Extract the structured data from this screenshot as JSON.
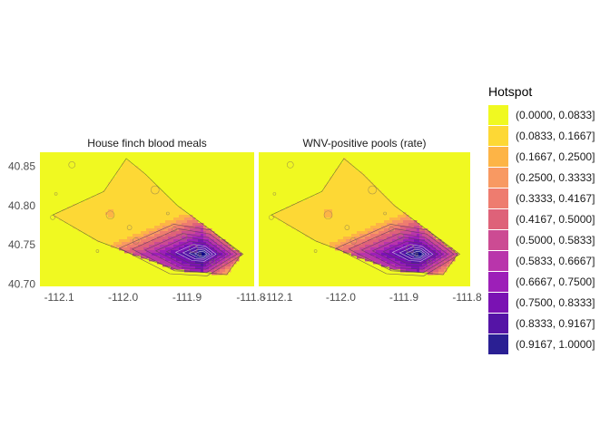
{
  "chart_data": {
    "type": "heatmap",
    "panels": [
      {
        "title": "House finch blood meals"
      },
      {
        "title": "WNV-positive pools (rate)"
      }
    ],
    "x_ticks": [
      -112.1,
      -112.0,
      -111.9,
      -111.8
    ],
    "x_tick_labels": [
      "-112.1",
      "-112.0",
      "-111.9",
      "-111.8"
    ],
    "y_ticks": [
      40.7,
      40.75,
      40.8,
      40.85
    ],
    "y_tick_labels": [
      "40.70",
      "40.75",
      "40.80",
      "40.85"
    ],
    "xlim": [
      -112.13,
      -111.795
    ],
    "ylim": [
      40.697,
      40.868
    ],
    "hotspot_peak": {
      "lon": -111.875,
      "lat": 40.738,
      "value": 1.0
    },
    "contour_levels": [
      0.0833,
      0.1667,
      0.25,
      0.3333,
      0.4167,
      0.5,
      0.5833,
      0.6667,
      0.75,
      0.8333,
      0.9167
    ],
    "legend": {
      "title": "Hotspot",
      "bins": [
        {
          "label": "(0.0000, 0.0833]",
          "color": "#f0f921"
        },
        {
          "label": "(0.0833, 0.1667]",
          "color": "#fdd835"
        },
        {
          "label": "(0.1667, 0.2500]",
          "color": "#fdb446"
        },
        {
          "label": "(0.2500, 0.3333]",
          "color": "#f89962"
        },
        {
          "label": "(0.3333, 0.4167]",
          "color": "#ee7c6f"
        },
        {
          "label": "(0.4167, 0.5000]",
          "color": "#de6279"
        },
        {
          "label": "(0.5000, 0.5833]",
          "color": "#cc4b93"
        },
        {
          "label": "(0.5833, 0.6667]",
          "color": "#b935ab"
        },
        {
          "label": "(0.6667, 0.7500]",
          "color": "#9d1fb8"
        },
        {
          "label": "(0.7500, 0.8333]",
          "color": "#7a12b3"
        },
        {
          "label": "(0.8333, 0.9167]",
          "color": "#5514a6"
        },
        {
          "label": "(0.9167, 1.0000]",
          "color": "#2a1f93"
        }
      ]
    },
    "sites": [
      {
        "lon": -112.105,
        "lat": 40.815
      },
      {
        "lon": -112.11,
        "lat": 40.785
      },
      {
        "lon": -112.08,
        "lat": 40.852
      },
      {
        "lon": -112.02,
        "lat": 40.788
      },
      {
        "lon": -112.04,
        "lat": 40.742
      },
      {
        "lon": -111.99,
        "lat": 40.772
      },
      {
        "lon": -111.98,
        "lat": 40.755
      },
      {
        "lon": -111.95,
        "lat": 40.82
      },
      {
        "lon": -111.93,
        "lat": 40.79
      },
      {
        "lon": -111.92,
        "lat": 40.77
      },
      {
        "lon": -111.905,
        "lat": 40.76
      },
      {
        "lon": -111.89,
        "lat": 40.745
      },
      {
        "lon": -111.88,
        "lat": 40.738
      },
      {
        "lon": -111.86,
        "lat": 40.728
      }
    ]
  }
}
